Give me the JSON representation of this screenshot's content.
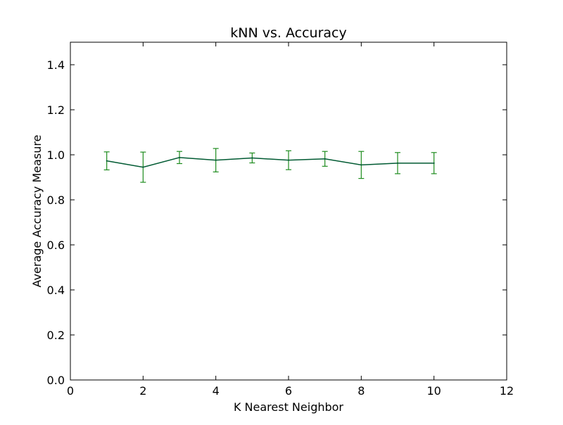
{
  "chart_data": {
    "type": "line",
    "title": "kNN vs. Accuracy",
    "xlabel": "K Nearest Neighbor",
    "ylabel": "Average Accuracy Measure",
    "xlim": [
      0,
      12
    ],
    "ylim": [
      0.0,
      1.5
    ],
    "xticks": [
      "0",
      "2",
      "4",
      "6",
      "8",
      "10",
      "12"
    ],
    "yticks": [
      "0.0",
      "0.2",
      "0.4",
      "0.6",
      "0.8",
      "1.0",
      "1.2",
      "1.4"
    ],
    "grid": false,
    "legend": "none",
    "series": [
      {
        "x": [
          1,
          2,
          3,
          4,
          5,
          6,
          7,
          8,
          9,
          10
        ],
        "values": [
          0.973,
          0.945,
          0.988,
          0.976,
          0.986,
          0.976,
          0.982,
          0.955,
          0.963,
          0.963
        ],
        "errors": [
          0.04,
          0.067,
          0.027,
          0.052,
          0.022,
          0.042,
          0.033,
          0.06,
          0.047,
          0.047
        ]
      }
    ],
    "colors": {
      "line": "#005a32",
      "errorbar": "#1e8c1e",
      "axes": "#000000"
    }
  }
}
